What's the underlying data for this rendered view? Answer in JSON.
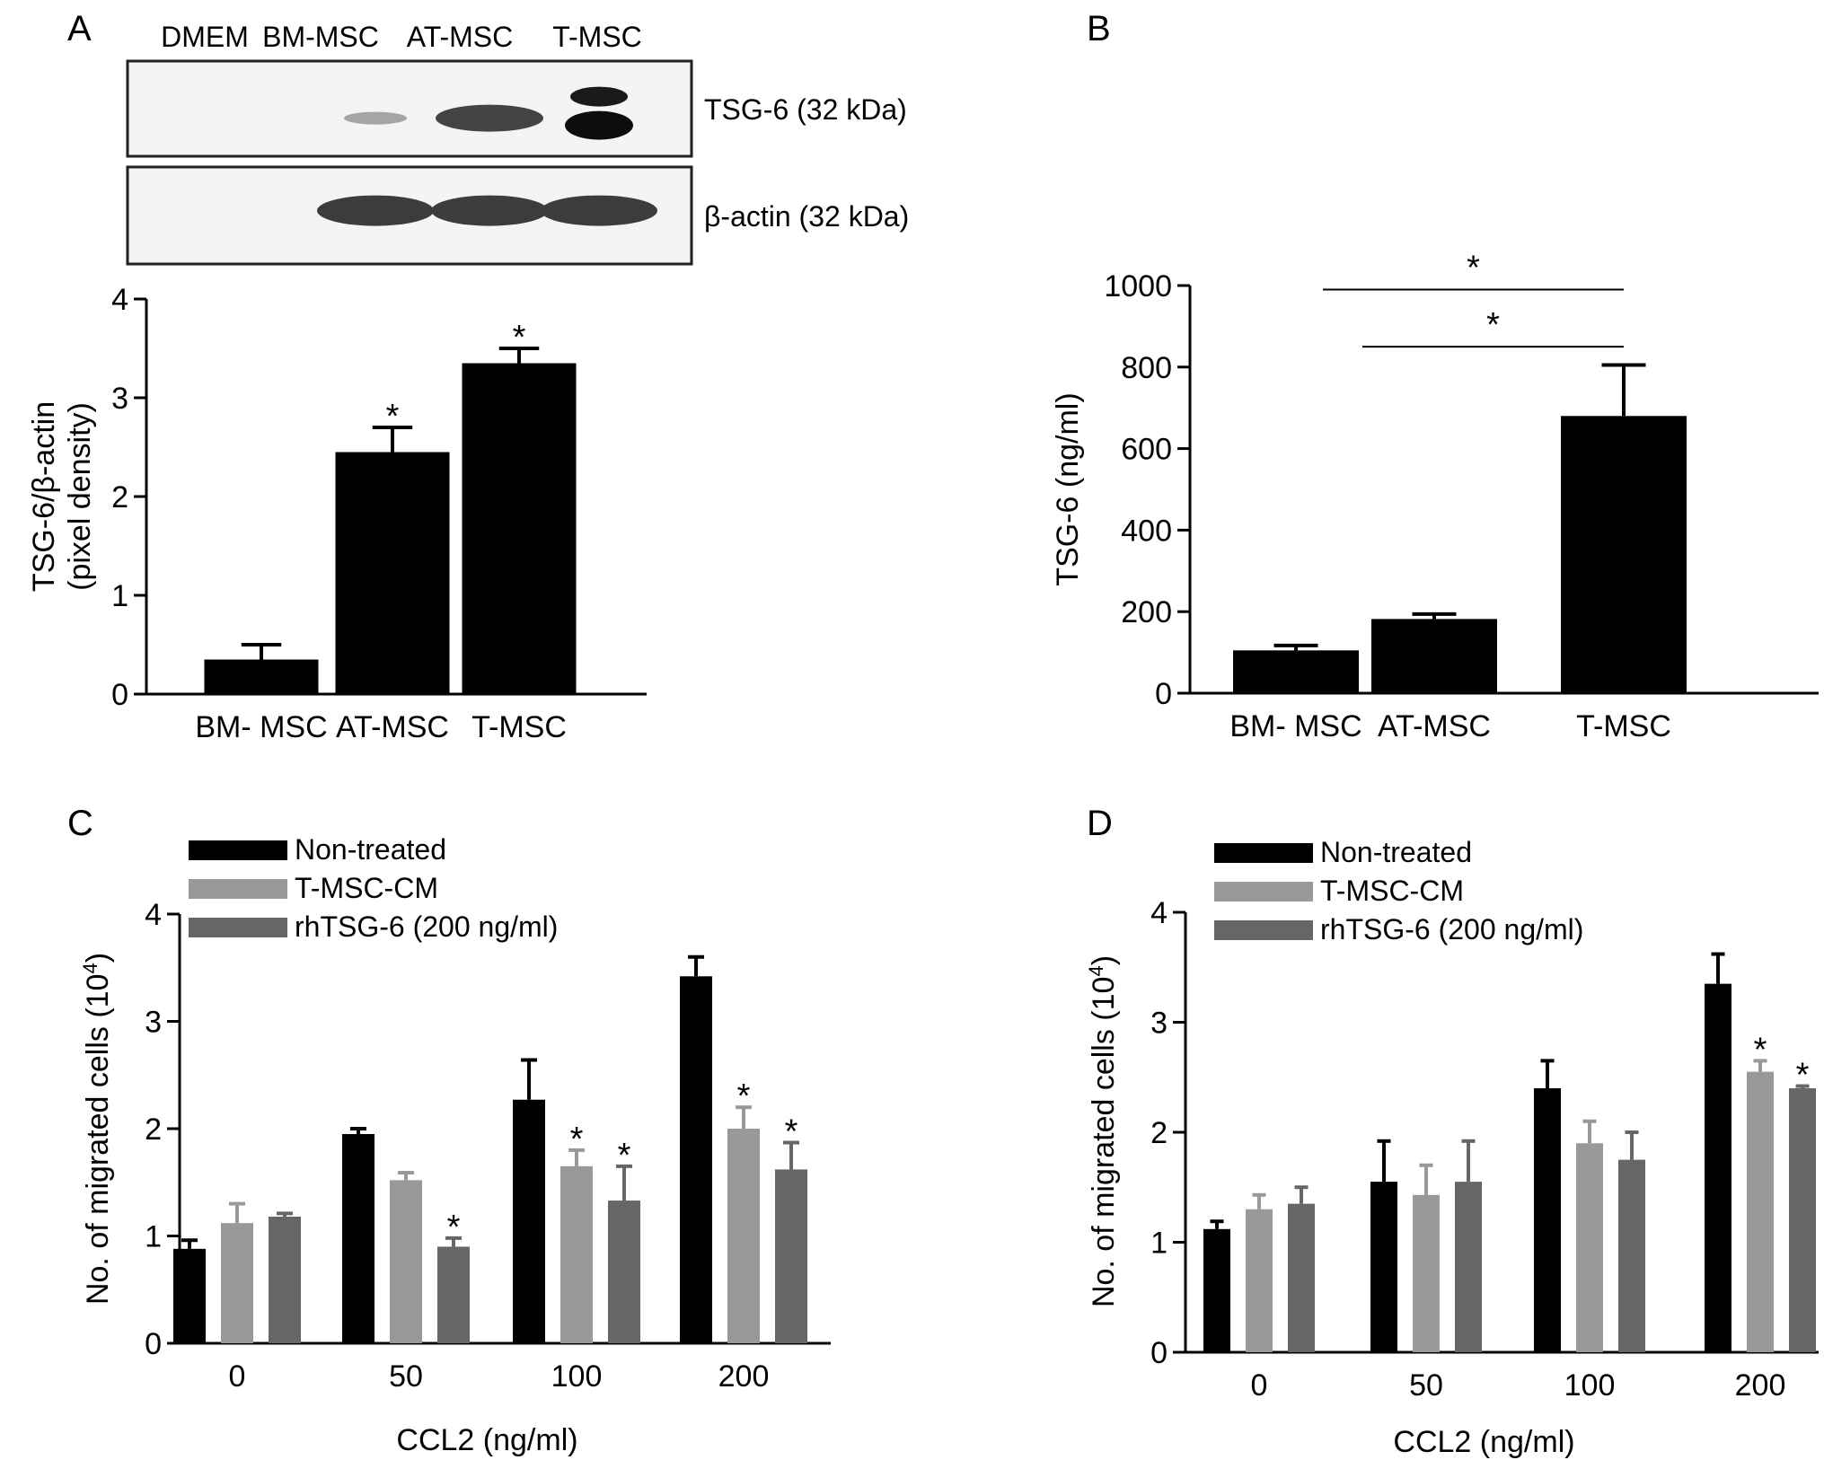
{
  "panel_letters": [
    "A",
    "B",
    "C",
    "D"
  ],
  "blot": {
    "lanes": [
      "DMEM",
      "BM-MSC",
      "AT-MSC",
      "T-MSC"
    ],
    "bands": [
      {
        "label": "TSG-6 (32 kDa)",
        "intensity": [
          0.0,
          0.3,
          0.95,
          0.95
        ],
        "double": [
          false,
          false,
          false,
          true
        ]
      },
      {
        "label": "β-actin (32 kDa)",
        "intensity": [
          0.0,
          1.0,
          1.0,
          1.0
        ],
        "double": [
          false,
          false,
          false,
          false
        ]
      }
    ]
  },
  "chart_data": [
    {
      "panel": "A",
      "type": "bar",
      "categories": [
        "BM- MSC",
        "AT-MSC",
        "T-MSC"
      ],
      "series": [
        {
          "values": [
            0.35,
            2.45,
            3.35
          ],
          "errors": [
            0.15,
            0.25,
            0.15
          ],
          "color": "#000000"
        }
      ],
      "significance": [
        "",
        "*",
        "*"
      ],
      "xlabel": "",
      "ylabel_lines": [
        "TSG-6/β-actin",
        "(pixel density)"
      ],
      "ylim": [
        0,
        4
      ],
      "yticks": [
        "0",
        "1",
        "2",
        "3",
        "4"
      ],
      "grid": false
    },
    {
      "panel": "B",
      "type": "bar",
      "categories": [
        "BM- MSC",
        "AT-MSC",
        "T-MSC"
      ],
      "series": [
        {
          "values": [
            105,
            182,
            680
          ],
          "errors": [
            12,
            12,
            125
          ],
          "color": "#000000"
        }
      ],
      "brackets": [
        {
          "from": 0,
          "to": 2,
          "y": 990,
          "label": "*"
        },
        {
          "from": 1,
          "to": 2,
          "y": 850,
          "label": "*"
        }
      ],
      "xlabel": "",
      "ylabel_lines": [
        "TSG-6 (ng/ml)"
      ],
      "ylim": [
        0,
        1000
      ],
      "yticks": [
        "0",
        "200",
        "400",
        "600",
        "800",
        "1000"
      ],
      "grid": false
    },
    {
      "panel": "C",
      "type": "bar",
      "categories": [
        "0",
        "50",
        "100",
        "200"
      ],
      "series": [
        {
          "name": "Non-treated",
          "color": "#000000",
          "values": [
            0.88,
            1.95,
            2.27,
            3.42
          ],
          "errors": [
            0.08,
            0.05,
            0.37,
            0.18
          ],
          "significance": [
            "",
            "",
            "",
            ""
          ]
        },
        {
          "name": "T-MSC-CM",
          "color": "#999999",
          "values": [
            1.12,
            1.52,
            1.65,
            2.0
          ],
          "errors": [
            0.18,
            0.07,
            0.15,
            0.2
          ],
          "significance": [
            "",
            "",
            "*",
            "*"
          ]
        },
        {
          "name": "rhTSG-6 (200 ng/ml)",
          "color": "#666666",
          "values": [
            1.18,
            0.9,
            1.33,
            1.62
          ],
          "errors": [
            0.03,
            0.08,
            0.32,
            0.25
          ],
          "significance": [
            "",
            "*",
            "*",
            "*"
          ]
        }
      ],
      "xlabel": "CCL2 (ng/ml)",
      "ylabel": "No. of migrated cells (10",
      "ylabel_sup": "4",
      "ylabel_close": ")",
      "ylim": [
        0,
        4
      ],
      "yticks": [
        "0",
        "1",
        "2",
        "3",
        "4"
      ],
      "legend": "top-left",
      "grid": false
    },
    {
      "panel": "D",
      "type": "bar",
      "categories": [
        "0",
        "50",
        "100",
        "200"
      ],
      "series": [
        {
          "name": "Non-treated",
          "color": "#000000",
          "values": [
            1.12,
            1.55,
            2.4,
            3.35
          ],
          "errors": [
            0.07,
            0.37,
            0.25,
            0.27
          ],
          "significance": [
            "",
            "",
            "",
            ""
          ]
        },
        {
          "name": "T-MSC-CM",
          "color": "#999999",
          "values": [
            1.3,
            1.43,
            1.9,
            2.55
          ],
          "errors": [
            0.13,
            0.27,
            0.2,
            0.1
          ],
          "significance": [
            "",
            "",
            "",
            "*"
          ]
        },
        {
          "name": "rhTSG-6 (200 ng/ml)",
          "color": "#666666",
          "values": [
            1.35,
            1.55,
            1.75,
            2.4
          ],
          "errors": [
            0.15,
            0.37,
            0.25,
            0.02
          ],
          "significance": [
            "",
            "",
            "",
            "*"
          ]
        }
      ],
      "xlabel": "CCL2 (ng/ml)",
      "ylabel": "No. of migrated cells (10",
      "ylabel_sup": "4",
      "ylabel_close": ")",
      "ylim": [
        0,
        4
      ],
      "yticks": [
        "0",
        "1",
        "2",
        "3",
        "4"
      ],
      "legend": "top-left",
      "grid": false
    }
  ]
}
